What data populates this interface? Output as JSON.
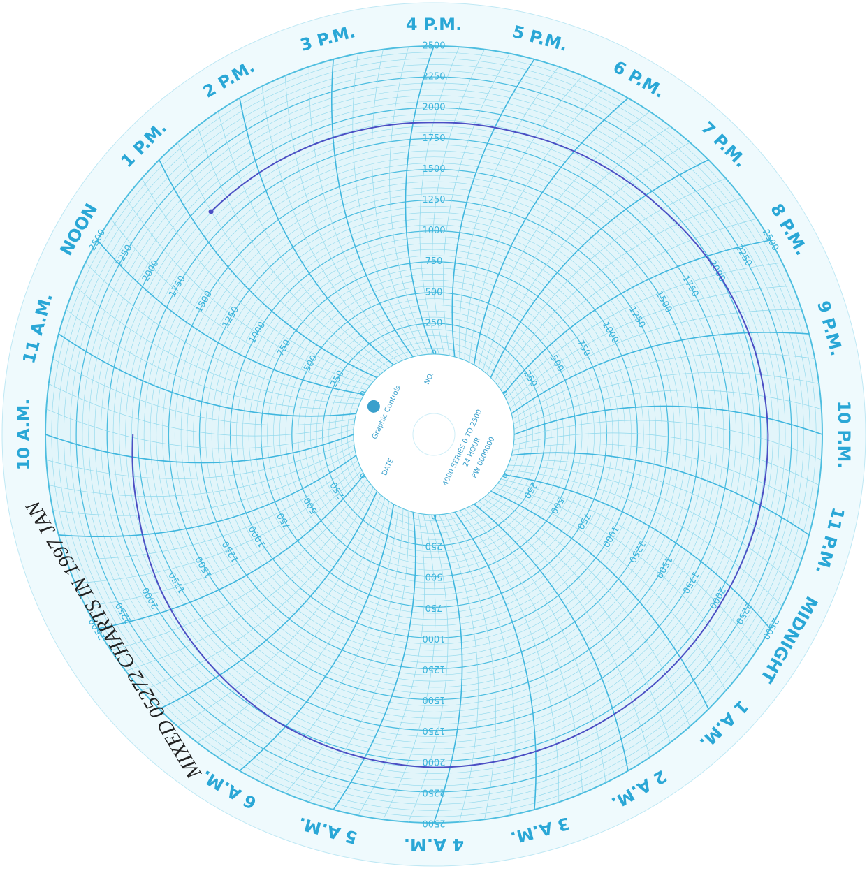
{
  "time_labels": [
    "4 P.M.",
    "5 P.M.",
    "6 P.M.",
    "7 P.M.",
    "8 P.M.",
    "9 P.M.",
    "10 P.M.",
    "11 P.M.",
    "MIDNIGHT",
    "1 A.M.",
    "2 A.M.",
    "3 A.M.",
    "4 A.M.",
    "5 A.M.",
    "6 A.M.",
    null,
    null,
    null,
    "10 A.M.",
    "11 A.M.",
    "NOON",
    "1 P.M.",
    "2 P.M.",
    "3 P.M."
  ],
  "scale": [
    0,
    250,
    500,
    750,
    1000,
    1250,
    1500,
    1750,
    2000,
    2250,
    2500
  ],
  "hub": {
    "brand": "Graphic Controls",
    "date": "DATE",
    "number": "NO.",
    "series": "4000 SERIES 0 TO 2500",
    "period": "24 HOUR",
    "part": "PW 0000000"
  },
  "trace": {
    "color": "#4b4fc4",
    "values": [
      1880,
      1890,
      1920,
      1950,
      2000,
      2040,
      2060,
      2060,
      2050,
      2050,
      2050,
      2050,
      2050,
      2030,
      2000,
      1950,
      1900,
      1830,
      1790,
      null,
      null,
      1905,
      1900,
      1890
    ]
  },
  "note": "MIXED 05272 CHARTS IN 1997 JAN"
}
